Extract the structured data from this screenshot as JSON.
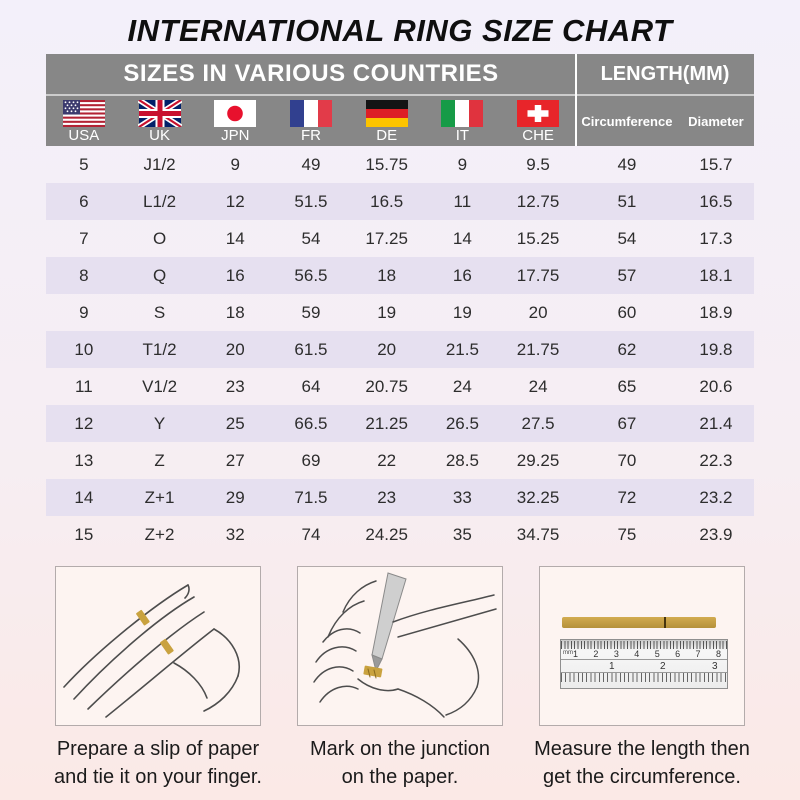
{
  "title": "INTERNATIONAL RING SIZE CHART",
  "table": {
    "sizes_header": "SIZES IN VARIOUS COUNTRIES",
    "length_header": "LENGTH(MM)",
    "country_columns": [
      {
        "code": "USA",
        "icon": "usa-flag-icon"
      },
      {
        "code": "UK",
        "icon": "uk-flag-icon"
      },
      {
        "code": "JPN",
        "icon": "japan-flag-icon"
      },
      {
        "code": "FR",
        "icon": "france-flag-icon"
      },
      {
        "code": "DE",
        "icon": "germany-flag-icon"
      },
      {
        "code": "IT",
        "icon": "italy-flag-icon"
      },
      {
        "code": "CHE",
        "icon": "switzerland-flag-icon"
      }
    ],
    "length_columns": [
      {
        "label": "Circumference"
      },
      {
        "label": "Diameter"
      }
    ]
  },
  "chart_data": {
    "type": "table",
    "title": "INTERNATIONAL RING SIZE CHART",
    "columns": [
      "USA",
      "UK",
      "JPN",
      "FR",
      "DE",
      "IT",
      "CHE",
      "Circumference",
      "Diameter"
    ],
    "rows": [
      [
        "5",
        "J1/2",
        "9",
        "49",
        "15.75",
        "9",
        "9.5",
        "49",
        "15.7"
      ],
      [
        "6",
        "L1/2",
        "12",
        "51.5",
        "16.5",
        "11",
        "12.75",
        "51",
        "16.5"
      ],
      [
        "7",
        "O",
        "14",
        "54",
        "17.25",
        "14",
        "15.25",
        "54",
        "17.3"
      ],
      [
        "8",
        "Q",
        "16",
        "56.5",
        "18",
        "16",
        "17.75",
        "57",
        "18.1"
      ],
      [
        "9",
        "S",
        "18",
        "59",
        "19",
        "19",
        "20",
        "60",
        "18.9"
      ],
      [
        "10",
        "T1/2",
        "20",
        "61.5",
        "20",
        "21.5",
        "21.75",
        "62",
        "19.8"
      ],
      [
        "11",
        "V1/2",
        "23",
        "64",
        "20.75",
        "24",
        "24",
        "65",
        "20.6"
      ],
      [
        "12",
        "Y",
        "25",
        "66.5",
        "21.25",
        "26.5",
        "27.5",
        "67",
        "21.4"
      ],
      [
        "13",
        "Z",
        "27",
        "69",
        "22",
        "28.5",
        "29.25",
        "70",
        "22.3"
      ],
      [
        "14",
        "Z+1",
        "29",
        "71.5",
        "23",
        "33",
        "32.25",
        "72",
        "23.2"
      ],
      [
        "15",
        "Z+2",
        "32",
        "74",
        "24.25",
        "35",
        "34.75",
        "75",
        "23.9"
      ]
    ]
  },
  "instructions": [
    {
      "illustration": "hand-with-paper-strip",
      "caption_line1": "Prepare a slip of paper",
      "caption_line2": "and tie it on your finger."
    },
    {
      "illustration": "pen-marking-junction",
      "caption_line1": "Mark on the junction",
      "caption_line2": "on the paper."
    },
    {
      "illustration": "ruler-measuring-strip",
      "caption_line1": "Measure the length then",
      "caption_line2": "get the circumference."
    }
  ],
  "ruler": {
    "unit_label": "mm",
    "cm_numbers": [
      "1",
      "2",
      "3",
      "4",
      "5",
      "6",
      "7",
      "8"
    ],
    "inch_numbers": [
      "1",
      "2",
      "3"
    ]
  },
  "colors": {
    "header_gray": "#878787",
    "row_shade": "#e6e0f0",
    "strip_gold": "#c9a23f",
    "background_top": "#f3f0fa",
    "background_bottom": "#fbe9e6",
    "title_color": "#0f0f0f"
  }
}
